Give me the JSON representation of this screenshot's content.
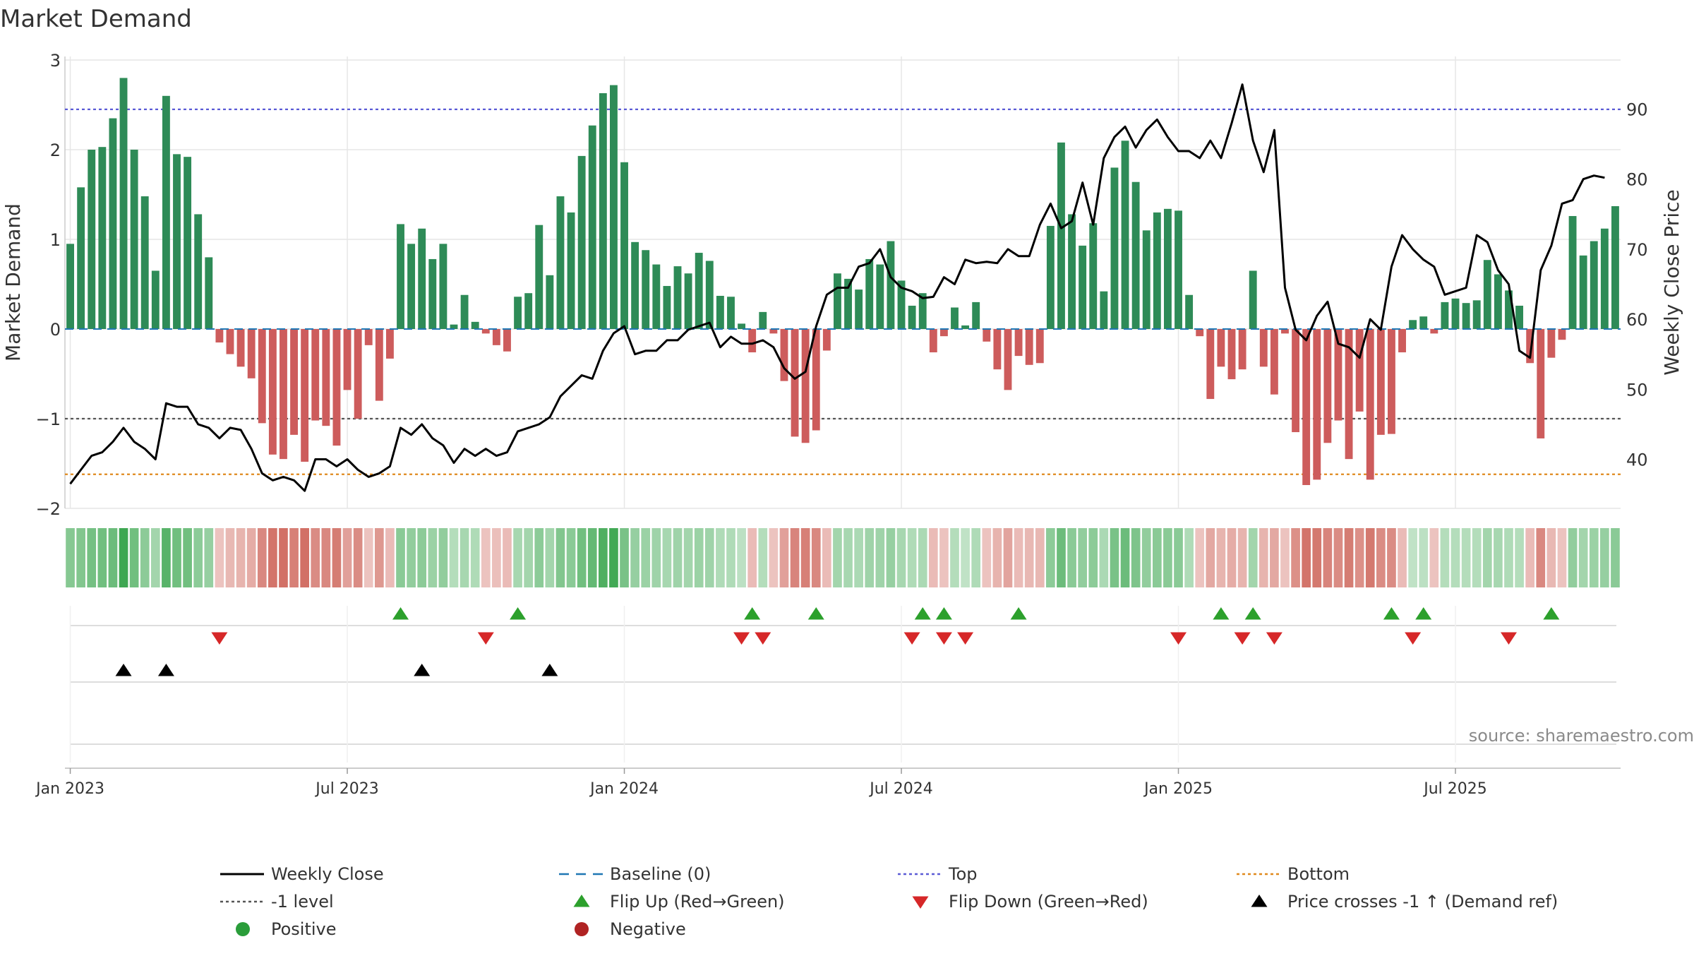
{
  "chart_data": {
    "type": "bar",
    "title": "Market Demand",
    "ylabel_left": "Market Demand",
    "ylabel_right": "Weekly Close Price",
    "ylim_left": [
      -2,
      3
    ],
    "ylim_right": [
      33,
      97
    ],
    "yticks_left": [
      "−2",
      "−1",
      "0",
      "1",
      "2",
      "3"
    ],
    "yticks_left_values": [
      -2,
      -1,
      0,
      1,
      2,
      3
    ],
    "yticks_right": [
      "40",
      "50",
      "60",
      "70",
      "80",
      "90"
    ],
    "yticks_right_values": [
      40,
      50,
      60,
      70,
      80,
      90
    ],
    "xticks": [
      "Jan 2023",
      "Jul 2023",
      "Jan 2024",
      "Jul 2024",
      "Jan 2025",
      "Jul 2025"
    ],
    "xticks_week_index": [
      0,
      26,
      52,
      78,
      104,
      130
    ],
    "reference_lines": {
      "top": 2.45,
      "minus_one": -1,
      "bottom": -1.62,
      "baseline": 0
    },
    "demand": [
      0.95,
      1.58,
      2.0,
      2.03,
      2.35,
      2.8,
      2.0,
      1.48,
      0.65,
      2.6,
      1.95,
      1.92,
      1.28,
      0.8,
      -0.15,
      -0.28,
      -0.42,
      -0.55,
      -1.05,
      -1.4,
      -1.45,
      -1.18,
      -1.48,
      -1.02,
      -1.08,
      -1.3,
      -0.68,
      -1.0,
      -0.18,
      -0.8,
      -0.33,
      1.17,
      0.95,
      1.12,
      0.78,
      0.95,
      0.05,
      0.38,
      0.08,
      -0.05,
      -0.18,
      -0.25,
      0.36,
      0.4,
      1.16,
      0.6,
      1.48,
      1.3,
      1.93,
      2.27,
      2.63,
      2.72,
      1.86,
      0.97,
      0.88,
      0.72,
      0.48,
      0.7,
      0.62,
      0.85,
      0.76,
      0.37,
      0.36,
      0.06,
      -0.26,
      0.19,
      -0.05,
      -0.58,
      -1.2,
      -1.27,
      -1.13,
      -0.24,
      0.62,
      0.56,
      0.44,
      0.78,
      0.72,
      0.98,
      0.54,
      0.26,
      0.4,
      -0.26,
      -0.08,
      0.24,
      0.04,
      0.3,
      -0.14,
      -0.45,
      -0.68,
      -0.3,
      -0.4,
      -0.38,
      1.15,
      2.08,
      1.28,
      0.93,
      1.18,
      0.42,
      1.8,
      2.1,
      1.64,
      1.1,
      1.3,
      1.34,
      1.32,
      0.38,
      -0.08,
      -0.78,
      -0.42,
      -0.56,
      -0.45,
      0.65,
      -0.42,
      -0.73,
      -0.05,
      -1.15,
      -1.74,
      -1.68,
      -1.27,
      -1.02,
      -1.45,
      -0.92,
      -1.68,
      -1.18,
      -1.17,
      -0.26,
      0.1,
      0.14,
      -0.05,
      0.3,
      0.34,
      0.29,
      0.32,
      0.77,
      0.61,
      0.43,
      0.26,
      -0.38,
      -1.22,
      -0.32,
      -0.12,
      1.26,
      0.82,
      0.98,
      1.12,
      1.37
    ],
    "close": [
      36.5,
      38.5,
      40.5,
      41.0,
      42.5,
      44.5,
      42.5,
      41.5,
      40.0,
      48.0,
      47.5,
      47.5,
      45.0,
      44.5,
      43.0,
      44.5,
      44.2,
      41.5,
      38.0,
      37.0,
      37.5,
      37.0,
      35.5,
      40.0,
      40.0,
      39.0,
      40.0,
      38.5,
      37.5,
      38.0,
      39.0,
      44.5,
      43.5,
      45.0,
      43.0,
      42.0,
      39.5,
      41.5,
      40.5,
      41.5,
      40.5,
      41.0,
      44.0,
      44.5,
      45.0,
      46.0,
      49.0,
      50.5,
      52.0,
      51.5,
      55.5,
      58.0,
      59.0,
      55.0,
      55.5,
      55.5,
      57.0,
      57.0,
      58.5,
      59.0,
      59.5,
      56.0,
      57.5,
      56.5,
      56.5,
      57.0,
      56.0,
      53.0,
      51.5,
      52.5,
      59.0,
      63.5,
      64.5,
      64.5,
      67.5,
      68.0,
      70.0,
      66.0,
      64.5,
      64.0,
      63.0,
      63.2,
      66.0,
      65.0,
      68.5,
      68.0,
      68.2,
      68.0,
      70.0,
      69.0,
      69.0,
      73.5,
      76.5,
      73.0,
      74.0,
      79.5,
      73.5,
      83.0,
      86.0,
      87.5,
      84.5,
      87.0,
      88.5,
      86.0,
      84.0,
      84.0,
      83.0,
      85.5,
      83.0,
      88.0,
      93.5,
      85.5,
      81.0,
      87.0,
      64.5,
      58.5,
      57.0,
      60.5,
      62.5,
      56.5,
      56.0,
      54.5,
      60.0,
      58.5,
      67.5,
      72.0,
      70.0,
      68.5,
      67.5,
      63.5,
      64.0,
      64.5,
      72.0,
      71.0,
      67.0,
      65.0,
      55.5,
      54.5,
      67.0,
      70.5,
      76.5,
      77.0,
      80.0,
      80.5,
      80.2
    ],
    "band_intensity": [
      0.58,
      0.6,
      0.66,
      0.68,
      0.7,
      0.92,
      0.68,
      0.55,
      0.44,
      0.8,
      0.68,
      0.68,
      0.55,
      0.5,
      0.3,
      0.36,
      0.38,
      0.42,
      0.6,
      0.7,
      0.72,
      0.64,
      0.72,
      0.58,
      0.6,
      0.66,
      0.48,
      0.58,
      0.3,
      0.52,
      0.34,
      0.56,
      0.52,
      0.55,
      0.48,
      0.52,
      0.36,
      0.42,
      0.38,
      0.3,
      0.32,
      0.34,
      0.42,
      0.44,
      0.55,
      0.44,
      0.6,
      0.56,
      0.68,
      0.74,
      0.84,
      0.9,
      0.64,
      0.5,
      0.48,
      0.46,
      0.42,
      0.46,
      0.44,
      0.48,
      0.46,
      0.38,
      0.38,
      0.32,
      0.34,
      0.36,
      0.3,
      0.48,
      0.62,
      0.64,
      0.6,
      0.34,
      0.44,
      0.42,
      0.4,
      0.46,
      0.46,
      0.5,
      0.42,
      0.38,
      0.4,
      0.34,
      0.3,
      0.36,
      0.3,
      0.38,
      0.3,
      0.38,
      0.46,
      0.34,
      0.36,
      0.36,
      0.55,
      0.7,
      0.56,
      0.52,
      0.55,
      0.4,
      0.64,
      0.7,
      0.62,
      0.52,
      0.56,
      0.56,
      0.56,
      0.38,
      0.3,
      0.44,
      0.38,
      0.42,
      0.38,
      0.44,
      0.38,
      0.44,
      0.3,
      0.56,
      0.7,
      0.68,
      0.62,
      0.58,
      0.66,
      0.56,
      0.68,
      0.58,
      0.58,
      0.34,
      0.3,
      0.32,
      0.3,
      0.36,
      0.36,
      0.36,
      0.36,
      0.44,
      0.42,
      0.38,
      0.36,
      0.34,
      0.6,
      0.36,
      0.3,
      0.52,
      0.44,
      0.48,
      0.5,
      0.56
    ],
    "flip_up_weeks": [
      31,
      42,
      64,
      70,
      80,
      82,
      89,
      108,
      111,
      124,
      127,
      139
    ],
    "flip_down_weeks": [
      14,
      39,
      63,
      65,
      79,
      82,
      84,
      104,
      110,
      113,
      126,
      135
    ],
    "price_cross_weeks": [
      5,
      9,
      33,
      45
    ],
    "source_text": "source: sharemaestro.com",
    "legend": [
      {
        "label": "Weekly Close",
        "marker": "line-solid",
        "color": "#000000"
      },
      {
        "label": "Baseline (0)",
        "marker": "line-dashed",
        "color": "#1f77b4"
      },
      {
        "label": "Top",
        "marker": "line-dotted",
        "color": "#5b5bd6"
      },
      {
        "label": "Bottom",
        "marker": "line-dotted",
        "color": "#e08a1e"
      },
      {
        "label": "-1 level",
        "marker": "line-dotted",
        "color": "#555555"
      },
      {
        "label": "Flip Up (Red→Green)",
        "marker": "triangle-up",
        "color": "#2ca02c"
      },
      {
        "label": "Flip Down (Green→Red)",
        "marker": "triangle-down",
        "color": "#d62728"
      },
      {
        "label": "Price crosses -1 ↑ (Demand ref)",
        "marker": "triangle-up",
        "color": "#000000"
      },
      {
        "label": "Positive",
        "marker": "circle",
        "color": "#2a9d3a"
      },
      {
        "label": "Negative",
        "marker": "circle",
        "color": "#b02323"
      }
    ],
    "colors": {
      "positive_bar": "#2e8b57",
      "negative_bar": "#cd5c5c",
      "positive_band": "#2ea043",
      "negative_band": "#c0392b",
      "close_line": "#000000",
      "baseline": "#1f77b4",
      "top": "#5b5bd6",
      "bottom": "#e08a1e",
      "minus_one": "#555555",
      "flip_up": "#2ca02c",
      "flip_down": "#d62728",
      "cross": "#000000",
      "grid": "#e6e6e6"
    }
  }
}
